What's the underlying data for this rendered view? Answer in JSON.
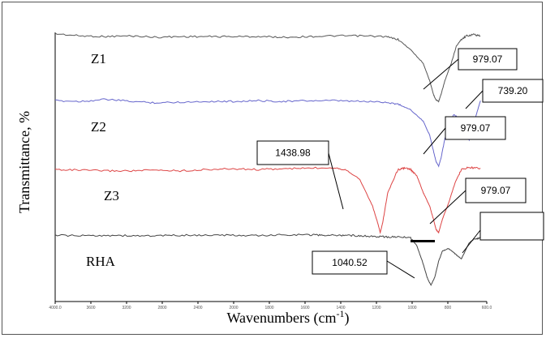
{
  "chart_data": {
    "type": "line",
    "xlabel": "Wavenumbers  (cm",
    "xlabel_sup": "-1",
    "xlabel_end": ")",
    "ylabel": "Transmittance, %",
    "x_reversed": true,
    "xlim": [
      4000,
      600
    ],
    "x_ticks": [
      "4000.0",
      "3600",
      "3200",
      "2800",
      "2400",
      "2000",
      "1800",
      "1600",
      "1400",
      "1200",
      "1000",
      "800",
      "600.0"
    ],
    "grid": false,
    "legend": "none",
    "series": [
      {
        "name": "Z1",
        "color": "#555555",
        "points": [
          [
            4000,
            0.02
          ],
          [
            3800,
            0.05
          ],
          [
            3600,
            0.06
          ],
          [
            3400,
            0.05
          ],
          [
            3200,
            0.07
          ],
          [
            3000,
            0.06
          ],
          [
            2800,
            0.06
          ],
          [
            2600,
            0.06
          ],
          [
            2400,
            0.06
          ],
          [
            2200,
            0.07
          ],
          [
            2000,
            0.06
          ],
          [
            1800,
            0.05
          ],
          [
            1600,
            0.05
          ],
          [
            1400,
            0.06
          ],
          [
            1300,
            0.1
          ],
          [
            1200,
            0.25
          ],
          [
            1100,
            0.45
          ],
          [
            1050,
            0.7
          ],
          [
            1020,
            0.9
          ],
          [
            1000,
            0.98
          ],
          [
            979,
            1.0
          ],
          [
            960,
            0.9
          ],
          [
            930,
            0.7
          ],
          [
            880,
            0.45
          ],
          [
            840,
            0.2
          ],
          [
            800,
            0.1
          ],
          [
            760,
            0.05
          ],
          [
            700,
            0.03
          ],
          [
            650,
            0.05
          ]
        ]
      },
      {
        "name": "Z2",
        "color": "#6666cc",
        "points": [
          [
            4000,
            0.05
          ],
          [
            3800,
            0.06
          ],
          [
            3600,
            0.03
          ],
          [
            3400,
            0.06
          ],
          [
            3200,
            0.08
          ],
          [
            3000,
            0.07
          ],
          [
            2800,
            0.06
          ],
          [
            2600,
            0.06
          ],
          [
            2400,
            0.05
          ],
          [
            2200,
            0.06
          ],
          [
            2000,
            0.05
          ],
          [
            1800,
            0.05
          ],
          [
            1600,
            0.06
          ],
          [
            1400,
            0.07
          ],
          [
            1300,
            0.1
          ],
          [
            1200,
            0.18
          ],
          [
            1100,
            0.35
          ],
          [
            1050,
            0.55
          ],
          [
            1020,
            0.78
          ],
          [
            1000,
            0.93
          ],
          [
            979,
            1.0
          ],
          [
            960,
            0.88
          ],
          [
            930,
            0.6
          ],
          [
            900,
            0.4
          ],
          [
            860,
            0.25
          ],
          [
            820,
            0.3
          ],
          [
            780,
            0.5
          ],
          [
            739,
            0.62
          ],
          [
            720,
            0.55
          ],
          [
            690,
            0.3
          ],
          [
            650,
            0.05
          ]
        ]
      },
      {
        "name": "Z3",
        "color": "#dd4444",
        "points": [
          [
            4000,
            0.05
          ],
          [
            3800,
            0.06
          ],
          [
            3600,
            0.07
          ],
          [
            3400,
            0.07
          ],
          [
            3200,
            0.06
          ],
          [
            3000,
            0.07
          ],
          [
            2800,
            0.05
          ],
          [
            2600,
            0.04
          ],
          [
            2400,
            0.05
          ],
          [
            2200,
            0.04
          ],
          [
            2000,
            0.03
          ],
          [
            1800,
            0.02
          ],
          [
            1700,
            0.06
          ],
          [
            1600,
            0.2
          ],
          [
            1500,
            0.6
          ],
          [
            1460,
            0.85
          ],
          [
            1439,
            1.0
          ],
          [
            1420,
            0.85
          ],
          [
            1380,
            0.4
          ],
          [
            1300,
            0.05
          ],
          [
            1250,
            0.03
          ],
          [
            1200,
            0.05
          ],
          [
            1150,
            0.15
          ],
          [
            1100,
            0.4
          ],
          [
            1050,
            0.6
          ],
          [
            1020,
            0.8
          ],
          [
            1000,
            0.95
          ],
          [
            979,
            1.0
          ],
          [
            950,
            0.8
          ],
          [
            900,
            0.55
          ],
          [
            850,
            0.25
          ],
          [
            800,
            0.05
          ],
          [
            750,
            0.02
          ],
          [
            650,
            0.03
          ]
        ]
      },
      {
        "name": "RHA",
        "color": "#444444",
        "points": [
          [
            4000,
            0.05
          ],
          [
            3800,
            0.06
          ],
          [
            3600,
            0.05
          ],
          [
            3400,
            0.06
          ],
          [
            3200,
            0.06
          ],
          [
            3000,
            0.05
          ],
          [
            2800,
            0.05
          ],
          [
            2600,
            0.05
          ],
          [
            2400,
            0.06
          ],
          [
            2200,
            0.04
          ],
          [
            2000,
            0.04
          ],
          [
            1900,
            0.05
          ],
          [
            1800,
            0.05
          ],
          [
            1700,
            0.05
          ],
          [
            1600,
            0.06
          ],
          [
            1500,
            0.07
          ],
          [
            1400,
            0.08
          ],
          [
            1300,
            0.08
          ],
          [
            1200,
            0.1
          ],
          [
            1150,
            0.25
          ],
          [
            1100,
            0.6
          ],
          [
            1070,
            0.85
          ],
          [
            1040,
            1.0
          ],
          [
            1010,
            0.85
          ],
          [
            980,
            0.55
          ],
          [
            950,
            0.35
          ],
          [
            900,
            0.3
          ],
          [
            850,
            0.4
          ],
          [
            800,
            0.5
          ],
          [
            780,
            0.4
          ],
          [
            740,
            0.2
          ],
          [
            700,
            0.12
          ],
          [
            650,
            0.1
          ]
        ]
      }
    ],
    "annotations": [
      "979.07",
      "739.20",
      "979.07",
      "1438.98",
      "979.07",
      "1040.52",
      ""
    ]
  }
}
